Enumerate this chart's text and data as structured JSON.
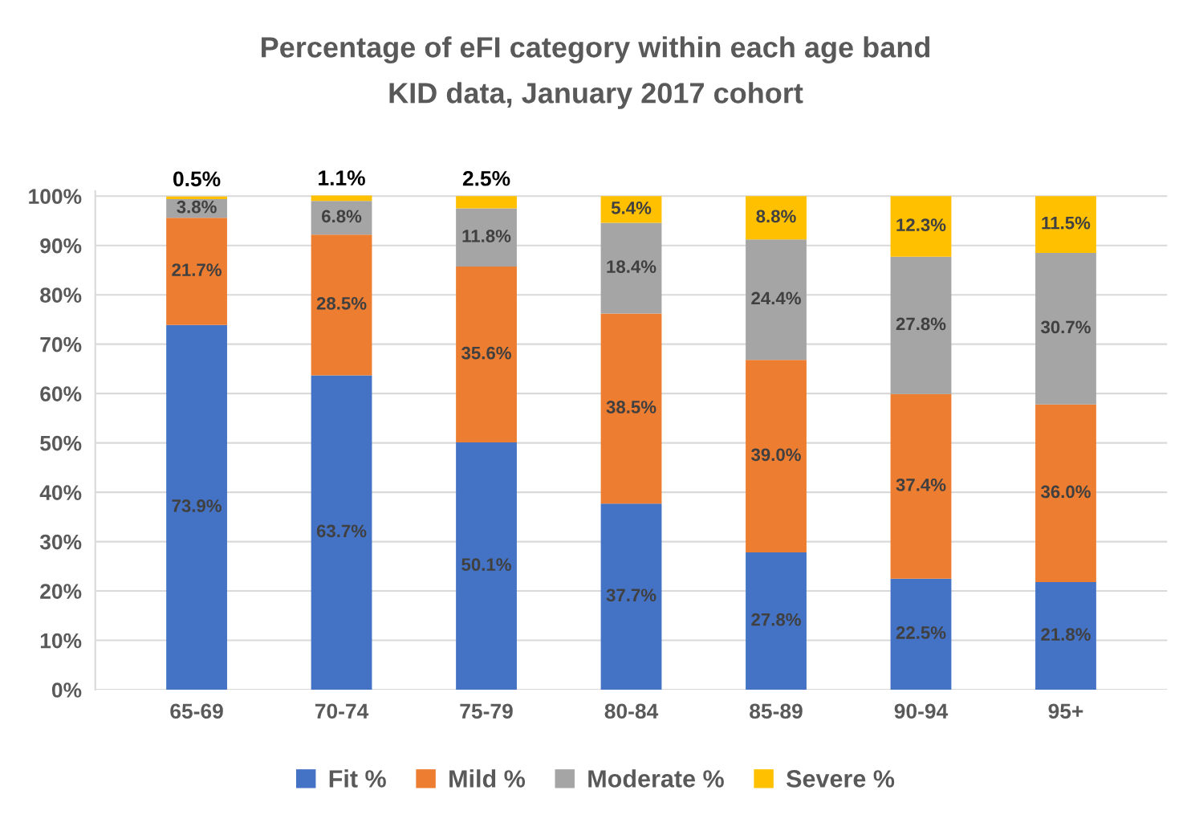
{
  "chart_data": {
    "type": "bar",
    "stacked": true,
    "title": "Percentage of eFI category within each age band",
    "subtitle": "KID data, January 2017 cohort",
    "categories": [
      "65-69",
      "70-74",
      "75-79",
      "80-84",
      "85-89",
      "90-94",
      "95+"
    ],
    "series": [
      {
        "name": "Fit %",
        "color": "#4472c4",
        "values": [
          73.9,
          63.7,
          50.1,
          37.7,
          27.8,
          22.5,
          21.8
        ],
        "value_labels": [
          "73.9%",
          "63.7%",
          "50.1%",
          "37.7%",
          "27.8%",
          "22.5%",
          "21.8%"
        ]
      },
      {
        "name": "Mild %",
        "color": "#ed7d31",
        "values": [
          21.7,
          28.5,
          35.6,
          38.5,
          39.0,
          37.4,
          36.0
        ],
        "value_labels": [
          "21.7%",
          "28.5%",
          "35.6%",
          "38.5%",
          "39.0%",
          "37.4%",
          "36.0%"
        ]
      },
      {
        "name": "Moderate %",
        "color": "#a5a5a5",
        "values": [
          3.8,
          6.8,
          11.8,
          18.4,
          24.4,
          27.8,
          30.7
        ],
        "value_labels": [
          "3.8%",
          "6.8%",
          "11.8%",
          "18.4%",
          "24.4%",
          "27.8%",
          "30.7%"
        ]
      },
      {
        "name": "Severe %",
        "color": "#ffc000",
        "values": [
          0.5,
          1.1,
          2.5,
          5.4,
          8.8,
          12.3,
          11.5
        ],
        "value_labels": [
          "0.5%",
          "1.1%",
          "2.5%",
          "5.4%",
          "8.8%",
          "12.3%",
          "11.5%"
        ]
      }
    ],
    "ylim": [
      0,
      101
    ],
    "yticks": [
      {
        "value": 0,
        "label": "0%"
      },
      {
        "value": 10,
        "label": "10%"
      },
      {
        "value": 20,
        "label": "20%"
      },
      {
        "value": 30,
        "label": "30%"
      },
      {
        "value": 40,
        "label": "40%"
      },
      {
        "value": 50,
        "label": "50%"
      },
      {
        "value": 60,
        "label": "60%"
      },
      {
        "value": 70,
        "label": "70%"
      },
      {
        "value": 80,
        "label": "80%"
      },
      {
        "value": 90,
        "label": "90%"
      },
      {
        "value": 100,
        "label": "100%"
      }
    ],
    "grid": "y",
    "legend": "bottom"
  }
}
